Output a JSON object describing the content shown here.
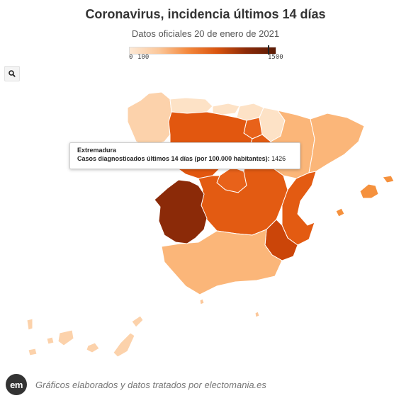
{
  "header": {
    "title": "Coronavirus, incidencia últimos 14 días",
    "subtitle": "Datos oficiales 20 de enero de 2021"
  },
  "legend": {
    "min_label": "0",
    "mid_label": "100",
    "max_label": "1500",
    "color_stops": [
      "#fde9d6",
      "#fbc79a",
      "#f4883c",
      "#d9540f",
      "#8b2a08",
      "#5a1a04"
    ],
    "marker_value": 1426
  },
  "search": {
    "icon": "search-icon"
  },
  "tooltip": {
    "region": "Extremadura",
    "metric_label": "Casos diagnosticados últimos 14 días (por 100.000 habitantes):",
    "value": "1426"
  },
  "map_data": {
    "type": "choropleth",
    "metric": "Casos diagnosticados últimos 14 días (por 100.000 habitantes)",
    "scale_max": 1500,
    "highlighted_region": "Extremadura",
    "regions": [
      {
        "name": "Galicia",
        "color": "#fcd2ab"
      },
      {
        "name": "Asturias",
        "color": "#fde2c6"
      },
      {
        "name": "Cantabria",
        "color": "#fde2c6"
      },
      {
        "name": "País Vasco",
        "color": "#fde2c6"
      },
      {
        "name": "Navarra",
        "color": "#fde2c6"
      },
      {
        "name": "La Rioja",
        "color": "#e8621a"
      },
      {
        "name": "Aragón",
        "color": "#fbb679"
      },
      {
        "name": "Cataluña",
        "color": "#fbb679"
      },
      {
        "name": "Castilla y León",
        "color": "#e2570f"
      },
      {
        "name": "Madrid",
        "color": "#e8621a"
      },
      {
        "name": "Castilla-La Mancha",
        "color": "#e35b12"
      },
      {
        "name": "Comunidad Valenciana",
        "color": "#e35b12"
      },
      {
        "name": "Región de Murcia",
        "color": "#cb4509"
      },
      {
        "name": "Extremadura",
        "color": "#8b2a08",
        "value": 1426
      },
      {
        "name": "Andalucía",
        "color": "#fbb679"
      },
      {
        "name": "Islas Baleares",
        "color": "#f5913d"
      },
      {
        "name": "Canarias",
        "color": "#fcd2ab"
      },
      {
        "name": "Ceuta",
        "color": "#fbc79a"
      },
      {
        "name": "Melilla",
        "color": "#fbc79a"
      }
    ]
  },
  "footer": {
    "logo_text": "em",
    "credit": "Gráficos elaborados y datos tratados por electomania.es"
  }
}
